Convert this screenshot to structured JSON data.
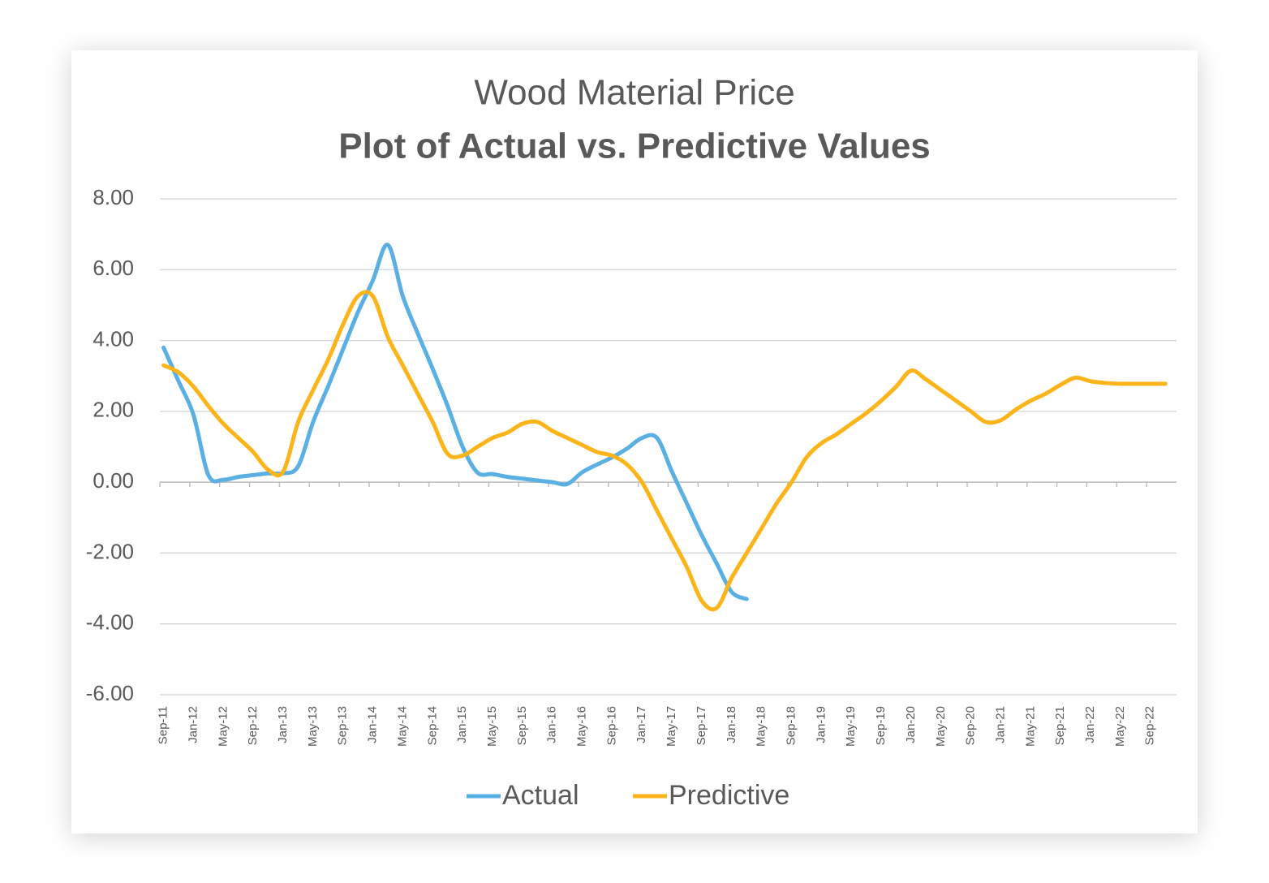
{
  "chart_data": {
    "type": "line",
    "title": "Wood Material Price",
    "subtitle": "Plot of Actual vs. Predictive Values",
    "categories": [
      "Sep-11",
      null,
      "Jan-12",
      null,
      "May-12",
      null,
      "Sep-12",
      null,
      "Jan-13",
      null,
      "May-13",
      null,
      "Sep-13",
      null,
      "Jan-14",
      null,
      "May-14",
      null,
      "Sep-14",
      null,
      "Jan-15",
      null,
      "May-15",
      null,
      "Sep-15",
      null,
      "Jan-16",
      null,
      "May-16",
      null,
      "Sep-16",
      null,
      "Jan-17",
      null,
      "May-17",
      null,
      "Sep-17",
      null,
      "Jan-18",
      null,
      "May-18",
      null,
      "Sep-18",
      null,
      "Jan-19",
      null,
      "May-19",
      null,
      "Sep-19",
      null,
      "Jan-20",
      null,
      "May-20",
      null,
      "Sep-20",
      null,
      "Jan-21",
      null,
      "May-21",
      null,
      "Sep-21",
      null,
      "Jan-22",
      null,
      "May-22",
      null,
      "Sep-22",
      null
    ],
    "series": [
      {
        "name": "Actual",
        "color": "#5aafe3",
        "values": [
          3.8,
          2.85,
          1.9,
          0.2,
          0.07,
          0.15,
          0.2,
          0.25,
          0.25,
          0.45,
          1.7,
          2.7,
          3.75,
          4.8,
          5.7,
          6.7,
          5.25,
          4.2,
          3.2,
          2.15,
          1.0,
          0.27,
          0.23,
          0.15,
          0.1,
          0.05,
          0.0,
          -0.05,
          0.28,
          0.5,
          0.7,
          0.95,
          1.25,
          1.25,
          0.3,
          -0.6,
          -1.5,
          -2.3,
          -3.1,
          -3.3,
          null,
          null,
          null,
          null,
          null,
          null,
          null,
          null,
          null,
          null,
          null,
          null,
          null,
          null,
          null,
          null,
          null,
          null,
          null,
          null,
          null,
          null,
          null,
          null,
          null,
          null,
          null,
          null
        ]
      },
      {
        "name": "Predictive",
        "color": "#fbb41a",
        "values": [
          3.3,
          3.1,
          2.7,
          2.15,
          1.65,
          1.25,
          0.85,
          0.35,
          0.3,
          1.7,
          2.6,
          3.45,
          4.45,
          5.25,
          5.25,
          4.1,
          3.3,
          2.5,
          1.7,
          0.8,
          0.75,
          1.0,
          1.25,
          1.4,
          1.65,
          1.7,
          1.45,
          1.25,
          1.05,
          0.85,
          0.75,
          0.5,
          0.0,
          -0.8,
          -1.6,
          -2.4,
          -3.35,
          -3.55,
          -2.7,
          -2.0,
          -1.3,
          -0.6,
          0.0,
          0.7,
          1.1,
          1.35,
          1.65,
          1.95,
          2.3,
          2.7,
          3.15,
          2.9,
          2.6,
          2.3,
          2.0,
          1.7,
          1.75,
          2.05,
          2.3,
          2.5,
          2.75,
          2.95,
          2.85,
          2.8,
          2.78,
          2.78,
          2.78,
          2.78
        ]
      }
    ],
    "ylim": [
      -6,
      8
    ],
    "yticks": [
      {
        "value": -6,
        "label": "-6.00"
      },
      {
        "value": -4,
        "label": "-4.00"
      },
      {
        "value": -2,
        "label": "-2.00"
      },
      {
        "value": 0,
        "label": "0.00"
      },
      {
        "value": 2,
        "label": "2.00"
      },
      {
        "value": 4,
        "label": "4.00"
      },
      {
        "value": 6,
        "label": "6.00"
      },
      {
        "value": 8,
        "label": "8.00"
      }
    ],
    "grid": true,
    "legend": "bottom"
  }
}
